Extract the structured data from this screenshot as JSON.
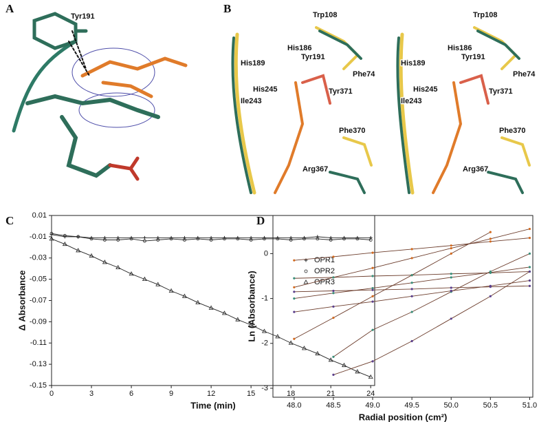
{
  "panels": [
    {
      "label": "A",
      "residues": [
        "Tyr191"
      ]
    },
    {
      "label": "B",
      "residues": [
        "Trp108",
        "His186",
        "Tyr191",
        "His189",
        "Phe74",
        "His245",
        "Tyr371",
        "Ile243",
        "Phe370",
        "Arg367"
      ]
    },
    {
      "label": "C"
    },
    {
      "label": "D"
    }
  ],
  "chart_data": [
    {
      "type": "line",
      "x_label": "Time (min)",
      "y_label": "Δ Absorbance",
      "x": [
        0,
        1,
        2,
        3,
        4,
        5,
        6,
        7,
        8,
        9,
        10,
        11,
        12,
        13,
        14,
        15,
        16,
        17,
        18,
        19,
        20,
        21,
        22,
        23,
        24
      ],
      "series": [
        {
          "name": "OPR1",
          "marker": "plus",
          "color": "#222",
          "values": [
            -0.008,
            -0.01,
            -0.01,
            -0.011,
            -0.011,
            -0.011,
            -0.011,
            -0.011,
            -0.011,
            -0.011,
            -0.011,
            -0.011,
            -0.011,
            -0.011,
            -0.011,
            -0.011,
            -0.011,
            -0.011,
            -0.011,
            -0.011,
            -0.01,
            -0.011,
            -0.011,
            -0.011,
            -0.011
          ]
        },
        {
          "name": "OPR2",
          "marker": "circle",
          "color": "#222",
          "values": [
            -0.007,
            -0.009,
            -0.01,
            -0.012,
            -0.013,
            -0.013,
            -0.012,
            -0.014,
            -0.013,
            -0.012,
            -0.013,
            -0.012,
            -0.013,
            -0.012,
            -0.012,
            -0.013,
            -0.012,
            -0.012,
            -0.013,
            -0.012,
            -0.012,
            -0.013,
            -0.012,
            -0.012,
            -0.013
          ]
        },
        {
          "name": "OPR3",
          "marker": "triangle",
          "color": "#222",
          "values": [
            -0.012,
            -0.017,
            -0.023,
            -0.028,
            -0.034,
            -0.039,
            -0.045,
            -0.05,
            -0.055,
            -0.061,
            -0.066,
            -0.072,
            -0.077,
            -0.082,
            -0.088,
            -0.093,
            -0.099,
            -0.104,
            -0.11,
            -0.115,
            -0.12,
            -0.126,
            -0.131,
            -0.137,
            -0.142
          ]
        }
      ],
      "xlim": [
        0,
        24.3
      ],
      "xticks": [
        0,
        3,
        6,
        9,
        12,
        15,
        18,
        21,
        24
      ],
      "ylim": [
        -0.15,
        0.01
      ],
      "yticks": [
        0.01,
        -0.01,
        -0.03,
        -0.05,
        -0.07,
        -0.09,
        -0.11,
        -0.13,
        -0.15
      ],
      "legend": "right"
    },
    {
      "type": "scatter-fit",
      "x_label": "Radial position (cm²)",
      "y_label": "Ln (Absorbance)",
      "x": [
        48.0,
        48.5,
        49.0,
        49.5,
        50.0,
        50.5,
        51.0
      ],
      "series": [
        {
          "color": "#d2691e",
          "values": [
            -0.15,
            -0.07,
            0.02,
            0.1,
            0.18,
            0.27,
            0.35
          ]
        },
        {
          "color": "#d2691e",
          "values": [
            -0.75,
            -0.53,
            -0.32,
            -0.1,
            0.12,
            0.33,
            0.55
          ]
        },
        {
          "color": "#d2691e",
          "values": [
            -1.9,
            -1.43,
            -0.95,
            -0.48,
            0.0,
            0.48,
            null
          ]
        },
        {
          "color": "#3a8f7a",
          "values": [
            -0.55,
            -0.53,
            -0.5,
            -0.48,
            -0.45,
            -0.43,
            -0.4
          ]
        },
        {
          "color": "#3a8f7a",
          "values": [
            -1.0,
            -0.88,
            -0.77,
            -0.65,
            -0.53,
            -0.42,
            -0.3
          ]
        },
        {
          "color": "#3a8f7a",
          "values": [
            null,
            -2.3,
            -1.7,
            -1.3,
            -0.85,
            -0.4,
            0.0
          ]
        },
        {
          "color": "#5b3f8c",
          "values": [
            -0.85,
            -0.83,
            -0.81,
            -0.79,
            -0.76,
            -0.74,
            -0.72
          ]
        },
        {
          "color": "#5b3f8c",
          "values": [
            -1.3,
            -1.18,
            -1.07,
            -0.95,
            -0.83,
            -0.72,
            -0.6
          ]
        },
        {
          "color": "#5b3f8c",
          "values": [
            null,
            -2.7,
            -2.4,
            -1.95,
            -1.45,
            -0.95,
            -0.4
          ]
        }
      ],
      "xlim": [
        47.73,
        51.04
      ],
      "xticks": [
        {
          "value": 48,
          "label": "48.0"
        },
        48.5,
        {
          "value": 49,
          "label": "49.0"
        },
        49.5,
        {
          "value": 50,
          "label": "50.0"
        },
        50.5,
        {
          "value": 51,
          "label": "51.0"
        }
      ],
      "ylim": [
        -3.2,
        0.85
      ],
      "yticks": [
        -3,
        -2,
        -1,
        0
      ]
    }
  ]
}
